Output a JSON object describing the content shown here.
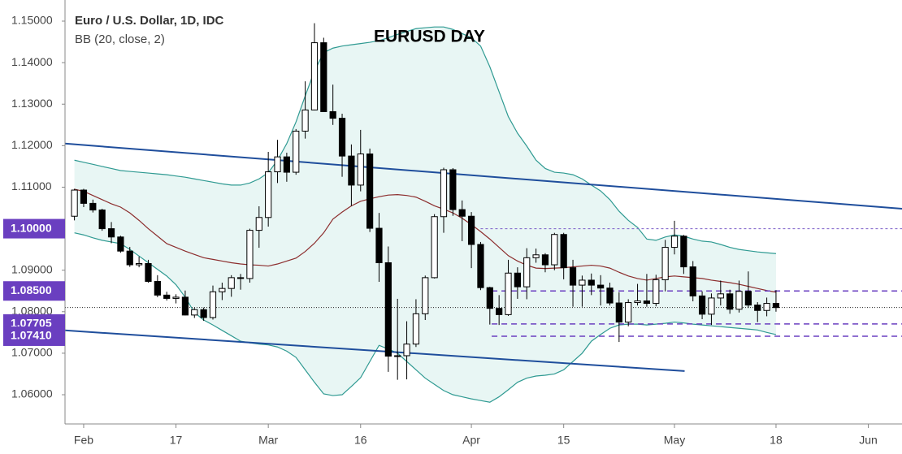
{
  "chart_data": {
    "type": "candlestick",
    "title": "EURUSD DAY",
    "symbol": "Euro / U.S. Dollar, 1D, IDC",
    "indicator": "BB (20, close, 2)",
    "categories": [
      null,
      "Feb",
      null,
      null,
      null,
      null,
      null,
      null,
      null,
      null,
      null,
      "17",
      null,
      null,
      null,
      null,
      null,
      null,
      null,
      null,
      null,
      "Mar",
      null,
      null,
      null,
      null,
      null,
      null,
      null,
      null,
      null,
      "16",
      null,
      null,
      null,
      null,
      null,
      null,
      null,
      null,
      null,
      null,
      null,
      "Apr",
      null,
      null,
      null,
      null,
      null,
      null,
      null,
      null,
      null,
      "15",
      null,
      null,
      null,
      null,
      null,
      null,
      null,
      null,
      null,
      null,
      null,
      "May",
      null,
      null,
      null,
      null,
      null,
      null,
      null,
      null,
      null,
      null,
      "18",
      null,
      null,
      null,
      null,
      null,
      null,
      null,
      null,
      null,
      "Jun",
      null
    ],
    "open": [
      1.103,
      1.1093,
      1.1061,
      1.1045,
      1.1,
      1.098,
      1.0946,
      1.0913,
      1.0916,
      1.0873,
      1.084,
      1.0832,
      1.0835,
      1.0792,
      1.0805,
      1.0786,
      1.0848,
      1.0856,
      1.0882,
      1.088,
      1.0996,
      1.1027,
      1.1137,
      1.1173,
      1.1136,
      1.1235,
      1.1286,
      1.1448,
      1.1282,
      1.1266,
      1.1175,
      1.1105,
      1.118,
      1.1001,
      1.0918,
      1.0693,
      1.0694,
      1.0722,
      1.0795,
      1.0882,
      1.1029,
      1.1142,
      1.1046,
      1.103,
      1.0962,
      1.0858,
      1.0808,
      1.0793,
      1.0893,
      1.086,
      1.093,
      1.0937,
      1.0913,
      1.0986,
      1.0906,
      1.0864,
      1.0876,
      1.0864,
      1.0857,
      1.0821,
      1.0775,
      1.0822,
      1.0826,
      1.082,
      1.0877,
      1.0955,
      1.0982,
      1.0908,
      1.0838,
      1.0794,
      1.0833,
      1.0843,
      1.0806,
      1.0849,
      1.0816,
      1.0803,
      1.082,
      null,
      null,
      null,
      null,
      null,
      null,
      null,
      null,
      null,
      null,
      null
    ],
    "high": [
      1.1096,
      1.1096,
      1.107,
      1.1048,
      1.1016,
      1.0983,
      1.0956,
      1.0933,
      1.0925,
      1.0888,
      1.0848,
      1.0842,
      1.0851,
      1.0809,
      1.081,
      1.0863,
      1.087,
      1.0888,
      1.0891,
      1.1,
      1.1054,
      1.1185,
      1.1214,
      1.1183,
      1.124,
      1.1355,
      1.1495,
      1.146,
      1.1347,
      1.1277,
      1.1203,
      1.1238,
      1.1193,
      1.1038,
      1.0957,
      1.0831,
      1.0777,
      1.083,
      1.0887,
      1.1035,
      1.1147,
      1.1146,
      1.1068,
      1.104,
      1.0968,
      1.086,
      1.084,
      1.0925,
      1.0907,
      1.0953,
      1.0952,
      1.0941,
      1.099,
      1.099,
      1.0925,
      1.0887,
      1.0892,
      1.0888,
      1.087,
      1.0847,
      1.083,
      1.0867,
      1.0891,
      1.0889,
      1.0973,
      1.1019,
      1.0985,
      1.0922,
      1.0849,
      1.0844,
      1.0875,
      1.0853,
      1.0875,
      1.0897,
      1.0823,
      1.0834,
      1.0852,
      null,
      null,
      null,
      null,
      null,
      null,
      null,
      null,
      null,
      null,
      null
    ],
    "low": [
      1.102,
      1.1052,
      1.1039,
      1.0995,
      1.0965,
      1.0942,
      1.0908,
      1.0907,
      1.087,
      1.0835,
      1.0827,
      1.082,
      1.0791,
      1.0785,
      1.0778,
      1.0781,
      1.0828,
      1.0836,
      1.0853,
      1.087,
      1.0954,
      1.1005,
      1.111,
      1.1113,
      1.113,
      1.1217,
      1.1285,
      1.1281,
      1.125,
      1.1125,
      1.1055,
      1.109,
      1.0992,
      1.0872,
      1.0655,
      1.0636,
      1.0637,
      1.0715,
      1.078,
      1.088,
      1.099,
      1.1031,
      1.097,
      1.0905,
      1.0852,
      1.0769,
      1.0768,
      1.079,
      1.0831,
      1.083,
      1.0918,
      1.0895,
      1.09,
      1.0878,
      1.0812,
      1.0812,
      1.084,
      1.0815,
      1.0815,
      1.0727,
      1.0765,
      1.0815,
      1.0812,
      1.0813,
      1.0849,
      1.0938,
      1.0891,
      1.0825,
      1.0782,
      1.0768,
      1.0815,
      1.0795,
      1.0798,
      1.0809,
      1.0775,
      1.0789,
      1.08,
      null,
      null,
      null,
      null,
      null,
      null,
      null,
      null,
      null,
      null,
      null
    ],
    "close": [
      1.1093,
      1.1061,
      1.1045,
      1.1,
      1.098,
      1.0946,
      1.0913,
      1.0916,
      1.0873,
      1.084,
      1.0832,
      1.0835,
      1.0792,
      1.0805,
      1.0786,
      1.0848,
      1.0856,
      1.0882,
      1.088,
      1.0996,
      1.1027,
      1.1137,
      1.1173,
      1.1136,
      1.1235,
      1.1286,
      1.1448,
      1.1282,
      1.1266,
      1.1175,
      1.1105,
      1.118,
      1.1001,
      1.0918,
      1.0693,
      1.0694,
      1.0722,
      1.0795,
      1.0882,
      1.1029,
      1.1142,
      1.1046,
      1.103,
      1.0962,
      1.0858,
      1.0808,
      1.0793,
      1.0893,
      1.086,
      1.093,
      1.0937,
      1.0913,
      1.0986,
      1.0906,
      1.0864,
      1.0876,
      1.0864,
      1.0857,
      1.0821,
      1.0775,
      1.0822,
      1.0826,
      1.082,
      1.0877,
      1.0955,
      1.0982,
      1.0908,
      1.0838,
      1.0794,
      1.0833,
      1.0843,
      1.0806,
      1.0849,
      1.0816,
      1.0803,
      1.082,
      1.081,
      null,
      null,
      null,
      null,
      null,
      null,
      null,
      null,
      null,
      null,
      null
    ],
    "up_color": "#ffffff",
    "down_color": "#000000",
    "bands": {
      "fill": "#e8f6f4",
      "edge_color": "#2f9a92",
      "middle_color": "#8c2d2d",
      "upper": [
        1.1165,
        1.116,
        1.1155,
        1.115,
        1.1145,
        1.114,
        1.1138,
        1.1136,
        1.1134,
        1.1132,
        1.113,
        1.1127,
        1.1124,
        1.112,
        1.1116,
        1.1112,
        1.1108,
        1.1105,
        1.1105,
        1.111,
        1.112,
        1.1135,
        1.1165,
        1.1205,
        1.1257,
        1.132,
        1.138,
        1.1424,
        1.1435,
        1.144,
        1.1443,
        1.1446,
        1.1449,
        1.1453,
        1.146,
        1.1468,
        1.1475,
        1.1482,
        1.1484,
        1.1486,
        1.1486,
        1.148,
        1.147,
        1.146,
        1.144,
        1.139,
        1.133,
        1.127,
        1.123,
        1.1199,
        1.1165,
        1.1145,
        1.1136,
        1.1134,
        1.113,
        1.112,
        1.1105,
        1.1091,
        1.107,
        1.1042,
        1.102,
        1.1003,
        1.0975,
        1.0972,
        1.098,
        1.0985,
        1.0982,
        1.0975,
        1.097,
        1.0968,
        1.0962,
        1.0955,
        1.095,
        1.0947,
        1.0944,
        1.0942,
        1.094,
        null,
        null,
        null,
        null,
        null,
        null,
        null,
        null,
        null,
        null,
        null
      ],
      "middle": [
        1.1095,
        1.109,
        1.108,
        1.107,
        1.106,
        1.1052,
        1.1038,
        1.102,
        1.1,
        1.0982,
        1.0964,
        1.0955,
        1.0946,
        1.0938,
        1.093,
        1.0926,
        1.0922,
        1.0918,
        1.0915,
        1.0913,
        1.0912,
        1.091,
        1.0915,
        1.0922,
        1.0929,
        1.0945,
        1.0965,
        1.099,
        1.1023,
        1.104,
        1.1055,
        1.1066,
        1.1072,
        1.1077,
        1.1081,
        1.1082,
        1.108,
        1.1076,
        1.1066,
        1.1055,
        1.1047,
        1.1038,
        1.1025,
        1.101,
        1.0993,
        1.0975,
        1.0955,
        1.0935,
        1.0922,
        1.0912,
        1.0905,
        1.0904,
        1.0905,
        1.0906,
        1.0908,
        1.091,
        1.0912,
        1.091,
        1.0905,
        1.0895,
        1.0886,
        1.088,
        1.0876,
        1.088,
        1.0884,
        1.0886,
        1.0884,
        1.0882,
        1.088,
        1.0876,
        1.0873,
        1.087,
        1.0866,
        1.0861,
        1.0856,
        1.0851,
        1.0847,
        null,
        null,
        null,
        null,
        null,
        null,
        null,
        null,
        null,
        null,
        null
      ],
      "lower": [
        1.099,
        1.0985,
        1.0978,
        1.0972,
        1.0968,
        1.0964,
        1.095,
        1.0934,
        1.0918,
        1.0902,
        1.0886,
        1.0865,
        1.0835,
        1.0798,
        1.078,
        1.0768,
        1.0755,
        1.0742,
        1.0729,
        1.0725,
        1.0722,
        1.072,
        1.0715,
        1.0705,
        1.069,
        1.066,
        1.063,
        1.0602,
        1.0598,
        1.06,
        1.062,
        1.0641,
        1.068,
        1.0719,
        1.071,
        1.07,
        1.068,
        1.066,
        1.064,
        1.0625,
        1.061,
        1.06,
        1.0595,
        1.059,
        1.0586,
        1.0582,
        1.0595,
        1.0612,
        1.063,
        1.064,
        1.0645,
        1.0647,
        1.065,
        1.066,
        1.068,
        1.07,
        1.0729,
        1.0745,
        1.076,
        1.0768,
        1.077,
        1.077,
        1.0768,
        1.077,
        1.0772,
        1.0775,
        1.0773,
        1.077,
        1.0768,
        1.0766,
        1.0764,
        1.0762,
        1.076,
        1.0758,
        1.0756,
        1.075,
        1.0745,
        null,
        null,
        null,
        null,
        null,
        null,
        null,
        null,
        null,
        null,
        null
      ]
    },
    "trendlines": [
      {
        "color": "#1f4e9c",
        "start": [
          -1.02,
          1.1205
        ],
        "end": [
          89.7,
          1.1048
        ]
      },
      {
        "color": "#1f4e9c",
        "start": [
          -1.02,
          1.0755
        ],
        "end": [
          66.1,
          1.0657
        ]
      }
    ],
    "levels": [
      {
        "value": 1.1,
        "label": "1.10000",
        "from": 44,
        "style": "dotted",
        "color": "#7b5cc8"
      },
      {
        "value": 1.085,
        "label": "1.08500",
        "from": 45.2,
        "style": "dashed",
        "color": "#6a3fc0"
      },
      {
        "value": 1.07705,
        "label": "1.07705",
        "from": 45.2,
        "style": "dashed",
        "color": "#6a3fc0"
      },
      {
        "value": 1.0741,
        "label": "1.07410",
        "from": 45.2,
        "style": "dashed",
        "color": "#6a3fc0"
      }
    ],
    "label_color": "#6a3fc0",
    "last_price_line": true,
    "ylim": [
      1.05296,
      1.15509
    ],
    "yticks": [
      {
        "value": 1.15,
        "label": "1.15000"
      },
      {
        "value": 1.14,
        "label": "1.14000"
      },
      {
        "value": 1.13,
        "label": "1.13000"
      },
      {
        "value": 1.12,
        "label": "1.12000"
      },
      {
        "value": 1.11,
        "label": "1.11000"
      },
      {
        "value": 1.09,
        "label": "1.09000"
      },
      {
        "value": 1.08,
        "label": "1.08000"
      },
      {
        "value": 1.07,
        "label": "1.07000"
      },
      {
        "value": 1.06,
        "label": "1.06000"
      }
    ],
    "grid": false
  }
}
